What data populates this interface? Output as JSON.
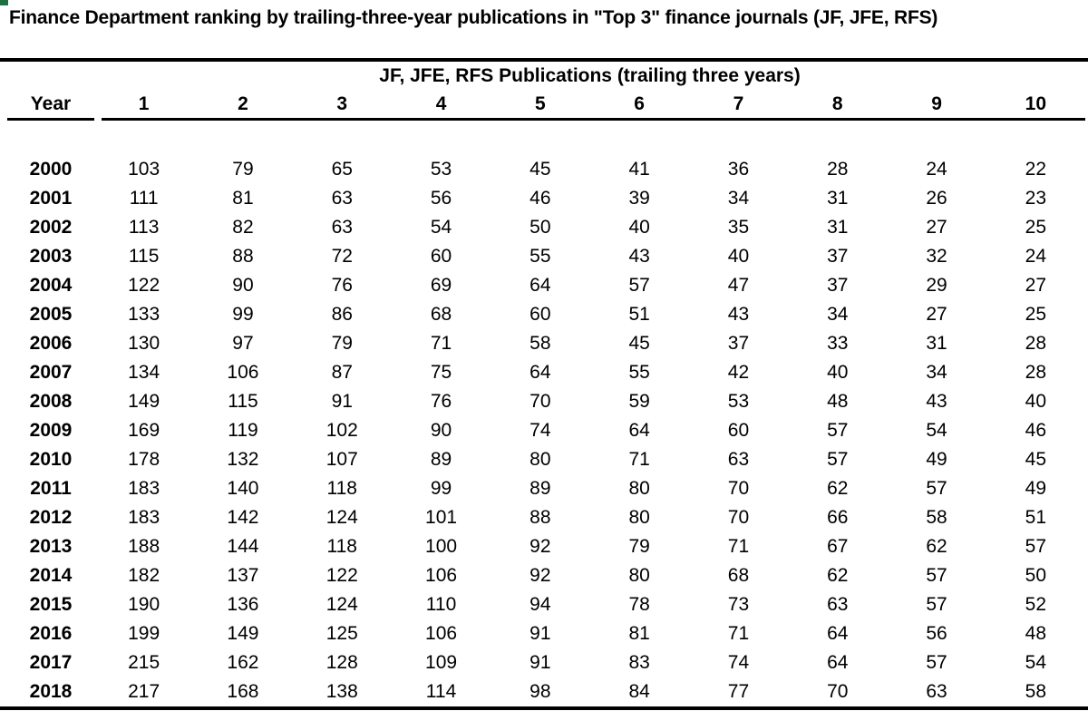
{
  "colors": {
    "text": "#000000",
    "background": "#ffffff",
    "corner_mark_green": "#1e6f42",
    "rule": "#000000"
  },
  "chart_data": {
    "type": "table",
    "title": "Finance Department ranking by trailing-three-year publications in \"Top 3\" finance journals (JF, JFE, RFS)",
    "group_header": "JF, JFE, RFS Publications (trailing three years)",
    "year_header": "Year",
    "rank_headers": [
      "1",
      "2",
      "3",
      "4",
      "5",
      "6",
      "7",
      "8",
      "9",
      "10"
    ],
    "rows": [
      {
        "year": "2000",
        "values": [
          103,
          79,
          65,
          53,
          45,
          41,
          36,
          28,
          24,
          22
        ]
      },
      {
        "year": "2001",
        "values": [
          111,
          81,
          63,
          56,
          46,
          39,
          34,
          31,
          26,
          23
        ]
      },
      {
        "year": "2002",
        "values": [
          113,
          82,
          63,
          54,
          50,
          40,
          35,
          31,
          27,
          25
        ]
      },
      {
        "year": "2003",
        "values": [
          115,
          88,
          72,
          60,
          55,
          43,
          40,
          37,
          32,
          24
        ]
      },
      {
        "year": "2004",
        "values": [
          122,
          90,
          76,
          69,
          64,
          57,
          47,
          37,
          29,
          27
        ]
      },
      {
        "year": "2005",
        "values": [
          133,
          99,
          86,
          68,
          60,
          51,
          43,
          34,
          27,
          25
        ]
      },
      {
        "year": "2006",
        "values": [
          130,
          97,
          79,
          71,
          58,
          45,
          37,
          33,
          31,
          28
        ]
      },
      {
        "year": "2007",
        "values": [
          134,
          106,
          87,
          75,
          64,
          55,
          42,
          40,
          34,
          28
        ]
      },
      {
        "year": "2008",
        "values": [
          149,
          115,
          91,
          76,
          70,
          59,
          53,
          48,
          43,
          40
        ]
      },
      {
        "year": "2009",
        "values": [
          169,
          119,
          102,
          90,
          74,
          64,
          60,
          57,
          54,
          46
        ]
      },
      {
        "year": "2010",
        "values": [
          178,
          132,
          107,
          89,
          80,
          71,
          63,
          57,
          49,
          45
        ]
      },
      {
        "year": "2011",
        "values": [
          183,
          140,
          118,
          99,
          89,
          80,
          70,
          62,
          57,
          49
        ]
      },
      {
        "year": "2012",
        "values": [
          183,
          142,
          124,
          101,
          88,
          80,
          70,
          66,
          58,
          51
        ]
      },
      {
        "year": "2013",
        "values": [
          188,
          144,
          118,
          100,
          92,
          79,
          71,
          67,
          62,
          57
        ]
      },
      {
        "year": "2014",
        "values": [
          182,
          137,
          122,
          106,
          92,
          80,
          68,
          62,
          57,
          50
        ]
      },
      {
        "year": "2015",
        "values": [
          190,
          136,
          124,
          110,
          94,
          78,
          73,
          63,
          57,
          52
        ]
      },
      {
        "year": "2016",
        "values": [
          199,
          149,
          125,
          106,
          91,
          81,
          71,
          64,
          56,
          48
        ]
      },
      {
        "year": "2017",
        "values": [
          215,
          162,
          128,
          109,
          91,
          83,
          74,
          64,
          57,
          54
        ]
      },
      {
        "year": "2018",
        "values": [
          217,
          168,
          138,
          114,
          98,
          84,
          77,
          70,
          63,
          58
        ]
      }
    ]
  }
}
